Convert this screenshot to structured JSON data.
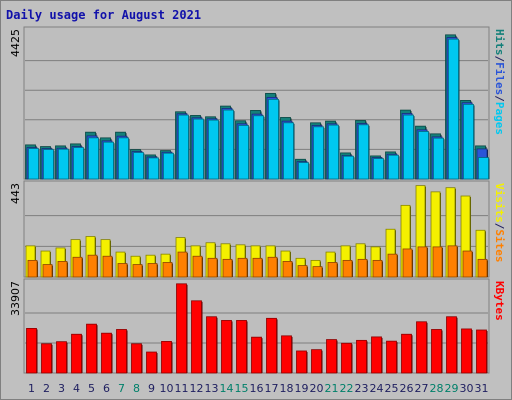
{
  "chart_data": {
    "title": "Daily usage for August 2021",
    "type": "bar",
    "categories": [
      "1",
      "2",
      "3",
      "4",
      "5",
      "6",
      "7",
      "8",
      "9",
      "10",
      "11",
      "12",
      "13",
      "14",
      "15",
      "16",
      "17",
      "18",
      "19",
      "20",
      "21",
      "22",
      "23",
      "24",
      "25",
      "26",
      "27",
      "28",
      "29",
      "30",
      "31"
    ],
    "weekend_days": [
      "7",
      "8",
      "14",
      "15",
      "21",
      "22",
      "28",
      "29"
    ],
    "colors": {
      "background": "#c0c0c0",
      "plot_bg": "#bebebe",
      "grid": "#7e7e7e",
      "title": "#1111aa",
      "hits": "#14807a",
      "files": "#2a55d8",
      "pages": "#00c8f0",
      "visits": "#f4f000",
      "sites": "#ff8000",
      "kbytes": "#ff0000",
      "weekday_label": "#1f1f60",
      "weekend_label": "#00806a"
    },
    "panels": [
      {
        "id": "hits-files-pages",
        "ymax_label": "4425",
        "ymax": 4425,
        "legend": [
          {
            "text": "Pages",
            "color_key": "pages"
          },
          {
            "text": "/",
            "color_key": "weekday_label"
          },
          {
            "text": "Files",
            "color_key": "files"
          },
          {
            "text": "/",
            "color_key": "weekday_label"
          },
          {
            "text": "Hits",
            "color_key": "hits"
          }
        ],
        "series": [
          {
            "key": "hits",
            "values": [
              1020,
              970,
              990,
              1050,
              1400,
              1230,
              1400,
              880,
              720,
              850,
              2010,
              1900,
              1860,
              2180,
              1740,
              2050,
              2560,
              1840,
              590,
              1680,
              1730,
              780,
              1750,
              690,
              810,
              2060,
              1580,
              1350,
              4310,
              2350,
              990
            ]
          },
          {
            "key": "files",
            "values": [
              940,
              910,
              920,
              970,
              1290,
              1140,
              1280,
              820,
              660,
              800,
              1950,
              1830,
              1800,
              2110,
              1650,
              1940,
              2440,
              1730,
              520,
              1600,
              1650,
              700,
              1660,
              640,
              740,
              1960,
              1470,
              1260,
              4230,
              2280,
              900
            ]
          },
          {
            "key": "pages",
            "values": [
              910,
              880,
              890,
              940,
              1230,
              1100,
              1230,
              790,
              630,
              770,
              1910,
              1790,
              1760,
              2060,
              1600,
              1890,
              2380,
              1680,
              490,
              1560,
              1610,
              680,
              1620,
              610,
              710,
              1910,
              1420,
              1220,
              4180,
              2230,
              640
            ]
          }
        ]
      },
      {
        "id": "visits-sites",
        "ymax_label": "443",
        "ymax": 443,
        "legend": [
          {
            "text": "Sites",
            "color_key": "sites"
          },
          {
            "text": "/",
            "color_key": "weekday_label"
          },
          {
            "text": "Visits",
            "color_key": "visits"
          }
        ],
        "series": [
          {
            "key": "visits",
            "values": [
              150,
              125,
              140,
              180,
              195,
              180,
              120,
              100,
              105,
              110,
              190,
              150,
              165,
              160,
              155,
              150,
              150,
              125,
              90,
              80,
              120,
              150,
              160,
              145,
              230,
              345,
              440,
              410,
              430,
              390,
              225
            ]
          },
          {
            "key": "sites",
            "values": [
              80,
              60,
              75,
              95,
              105,
              100,
              65,
              60,
              65,
              70,
              120,
              100,
              90,
              85,
              90,
              90,
              95,
              75,
              55,
              50,
              70,
              80,
              85,
              80,
              110,
              135,
              145,
              145,
              150,
              125,
              85
            ]
          }
        ]
      },
      {
        "id": "kbytes",
        "ymax_label": "33907",
        "ymax": 33907,
        "legend": [
          {
            "text": "KBytes",
            "color_key": "kbytes"
          }
        ],
        "series": [
          {
            "key": "kbytes",
            "values": [
              16800,
              11000,
              11800,
              14600,
              18400,
              15000,
              16400,
              11000,
              7900,
              11900,
              33600,
              27200,
              21200,
              19800,
              19800,
              13500,
              20600,
              14000,
              8300,
              8800,
              12600,
              11200,
              12300,
              13600,
              12000,
              14600,
              19300,
              16400,
              21200,
              16600,
              16200
            ]
          }
        ]
      }
    ]
  }
}
